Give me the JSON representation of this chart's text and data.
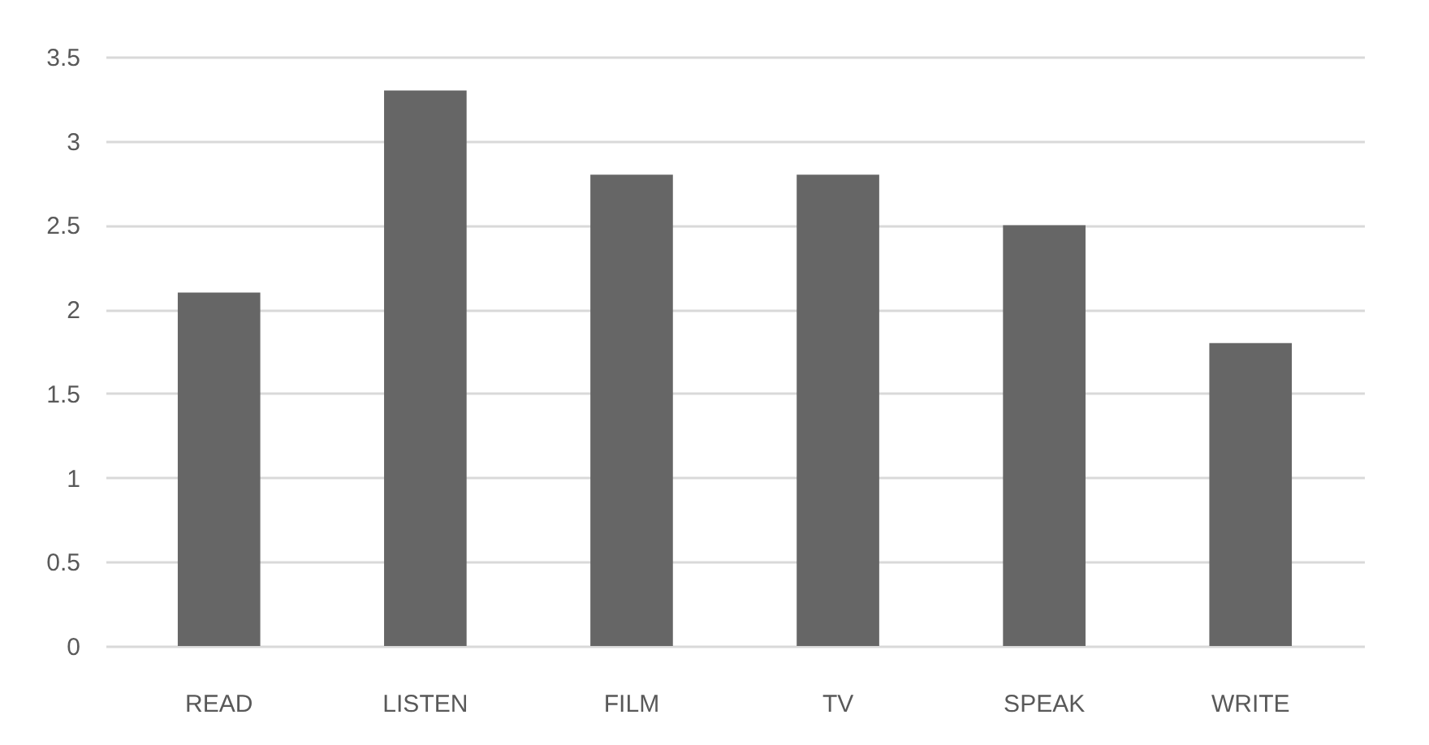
{
  "chart_data": {
    "type": "bar",
    "categories": [
      "READ",
      "LISTEN",
      "FILM",
      "TV",
      "SPEAK",
      "WRITE"
    ],
    "values": [
      2.1,
      3.3,
      2.8,
      2.8,
      2.5,
      1.8
    ],
    "color": "#666666",
    "ylim": [
      0,
      3.5
    ],
    "yticks": [
      0,
      0.5,
      1,
      1.5,
      2,
      2.5,
      3,
      3.5
    ],
    "grid": true
  }
}
